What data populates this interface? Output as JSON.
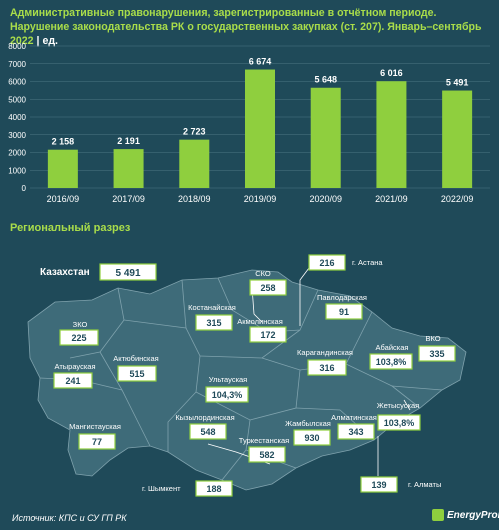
{
  "header": {
    "title": "Административные правонарушения, зарегистрированные в отчётном периоде. Нарушение законодательства РК о государственных закупках (ст. 207). Январь–сентябрь 2022",
    "unit": "| ед."
  },
  "chart_data": {
    "type": "bar",
    "categories": [
      "2016/09",
      "2017/09",
      "2018/09",
      "2019/09",
      "2020/09",
      "2021/09",
      "2022/09"
    ],
    "values": [
      2158,
      2191,
      2723,
      6674,
      5648,
      6016,
      5491
    ],
    "value_labels": [
      "2 158",
      "2 191",
      "2 723",
      "6 674",
      "5 648",
      "6 016",
      "5 491"
    ],
    "ylim": [
      0,
      8000
    ],
    "yticks": [
      0,
      1000,
      2000,
      3000,
      4000,
      5000,
      6000,
      7000,
      8000
    ],
    "grid": true,
    "colors": {
      "bar": "#8fcf3e",
      "background": "#1f4a59"
    }
  },
  "section": {
    "title": "Региональный разрез"
  },
  "map": {
    "total": {
      "name": "Казахстан",
      "value": "5 491"
    },
    "regions": [
      {
        "id": "sko",
        "name": "СКО",
        "value": "258"
      },
      {
        "id": "astana",
        "name": "г. Астана",
        "value": "216"
      },
      {
        "id": "kostanay",
        "name": "Костанайская",
        "value": "315"
      },
      {
        "id": "akmola",
        "name": "Акмолинская",
        "value": "172"
      },
      {
        "id": "pavlodar",
        "name": "Павлодарская",
        "value": "91"
      },
      {
        "id": "zko",
        "name": "ЗКО",
        "value": "225"
      },
      {
        "id": "aktobe",
        "name": "Актюбинская",
        "value": "515"
      },
      {
        "id": "karaganda",
        "name": "Карагандинская",
        "value": "316"
      },
      {
        "id": "abai",
        "name": "Абайская",
        "value": "103,8%"
      },
      {
        "id": "vko",
        "name": "ВКО",
        "value": "335"
      },
      {
        "id": "atyrau",
        "name": "Атырауская",
        "value": "241"
      },
      {
        "id": "ulytau",
        "name": "Ультауская",
        "value": "104,3%"
      },
      {
        "id": "zhetysu",
        "name": "Жетысуская",
        "value": "103,8%"
      },
      {
        "id": "mangystau",
        "name": "Мангистауская",
        "value": "77"
      },
      {
        "id": "kyzylorda",
        "name": "Кызылординская",
        "value": "548"
      },
      {
        "id": "zhambyl",
        "name": "Жамбылская",
        "value": "930"
      },
      {
        "id": "almaty_reg",
        "name": "Алматинская",
        "value": "343"
      },
      {
        "id": "turkestan",
        "name": "Туркестанская",
        "value": "582"
      },
      {
        "id": "almaty",
        "name": "г. Алматы",
        "value": "139"
      },
      {
        "id": "shymkent",
        "name": "г. Шымкент",
        "value": "188"
      }
    ]
  },
  "footer": {
    "source": "Источник: КПС и СУ ГП РК",
    "brand": "EnergyProm"
  }
}
